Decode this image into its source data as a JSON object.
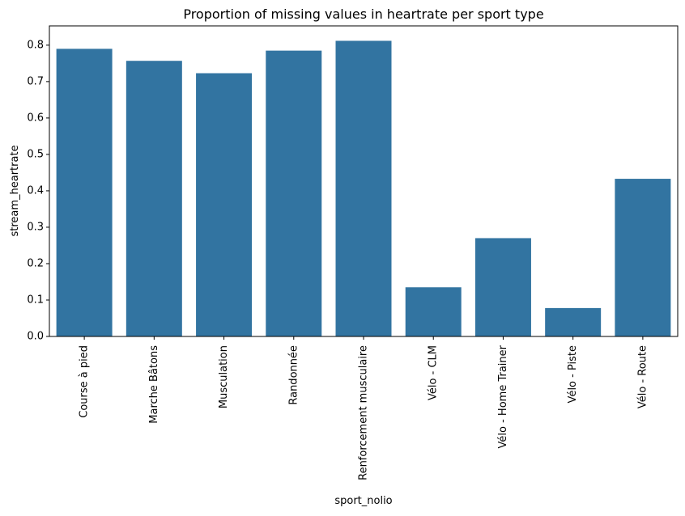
{
  "chart_data": {
    "type": "bar",
    "title": "Proportion of missing values in heartrate per sport type",
    "xlabel": "sport_nolio",
    "ylabel": "stream_heartrate",
    "categories": [
      "Course à pied",
      "Marche Bâtons",
      "Musculation",
      "Randonnée",
      "Renforcement musculaire",
      "Vélo - CLM",
      "Vélo - Home Trainer",
      "Vélo - Piste",
      "Vélo - Route"
    ],
    "values": [
      0.79,
      0.757,
      0.723,
      0.785,
      0.812,
      0.135,
      0.27,
      0.078,
      0.433
    ],
    "yticks": [
      0.0,
      0.1,
      0.2,
      0.3,
      0.4,
      0.5,
      0.6,
      0.7,
      0.8
    ],
    "ytick_labels": [
      "0.0",
      "0.1",
      "0.2",
      "0.3",
      "0.4",
      "0.5",
      "0.6",
      "0.7",
      "0.8"
    ],
    "ylim": [
      0,
      0.853
    ],
    "grid": false,
    "bar_color": "#3274a1"
  }
}
